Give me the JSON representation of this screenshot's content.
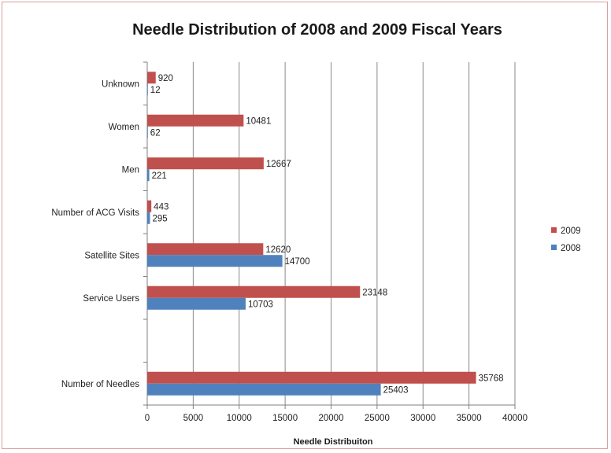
{
  "chart_data": {
    "type": "bar",
    "orientation": "horizontal",
    "title": "Needle Distribution of 2008 and 2009 Fiscal Years",
    "xlabel": "Needle Distribuiton",
    "ylabel": "",
    "xlim": [
      0,
      40000
    ],
    "x_ticks": [
      "0",
      "5000",
      "10000",
      "15000",
      "20000",
      "25000",
      "30000",
      "35000",
      "40000"
    ],
    "grid": "vertical",
    "legend_position": "right",
    "categories": [
      "Unknown",
      "Women",
      "Men",
      "Number of ACG Visits",
      "Satellite Sites",
      "Service Users",
      "",
      "Number of Needles"
    ],
    "series": [
      {
        "name": "2009",
        "color": "#c0504d",
        "values": [
          920,
          10481,
          12667,
          443,
          12620,
          23148,
          null,
          35768
        ],
        "labels": [
          "920",
          "10481",
          "12667",
          "443",
          "12620",
          "23148",
          "",
          "35768"
        ]
      },
      {
        "name": "2008",
        "color": "#4f81bd",
        "values": [
          12,
          62,
          221,
          295,
          14700,
          10703,
          null,
          25403
        ],
        "labels": [
          "12",
          "62",
          "221",
          "295",
          "14700",
          "10703",
          "",
          "25403"
        ]
      }
    ]
  }
}
